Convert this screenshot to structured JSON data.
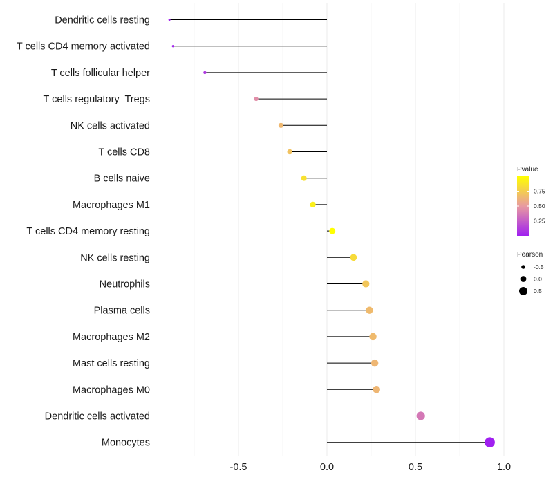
{
  "chart_data": {
    "type": "lollipop",
    "title": "",
    "xlabel": "",
    "ylabel": "",
    "xlim": [
      -1.0,
      1.0
    ],
    "x_ticks": [
      -0.5,
      0.0,
      0.5,
      1.0
    ],
    "x_tick_labels": [
      "-0.5",
      "0.0",
      "0.5",
      "1.0"
    ],
    "grid": true,
    "categories": [
      "Dendritic cells resting",
      "T cells CD4 memory activated",
      "T cells follicular helper",
      "T cells regulatory  Tregs",
      "NK cells activated",
      "T cells CD8",
      "B cells naive",
      "Macrophages M1",
      "T cells CD4 memory resting",
      "NK cells resting",
      "Neutrophils",
      "Plasma cells",
      "Macrophages M2",
      "Mast cells resting",
      "Macrophages M0",
      "Dendritic cells activated",
      "Monocytes"
    ],
    "pearson": [
      -0.89,
      -0.87,
      -0.69,
      -0.4,
      -0.26,
      -0.21,
      -0.13,
      -0.08,
      0.03,
      0.15,
      0.22,
      0.24,
      0.26,
      0.27,
      0.28,
      0.53,
      0.92
    ],
    "pvalue": [
      0.01,
      0.02,
      0.1,
      0.45,
      0.65,
      0.7,
      0.85,
      0.92,
      1.0,
      0.82,
      0.72,
      0.66,
      0.66,
      0.64,
      0.64,
      0.36,
      0.0
    ],
    "legend": {
      "color_title": "Pvalue",
      "color_ticks": [
        0.25,
        0.5,
        0.75
      ],
      "color_tick_labels": [
        "0.25",
        "0.50",
        "0.75"
      ],
      "color_low": "#a020f0",
      "color_mid": "#e89aa0",
      "color_high": "#ffff00",
      "size_title": "Pearson",
      "size_values": [
        -0.5,
        0.0,
        0.5
      ],
      "size_labels": [
        "-0.5",
        "0.0",
        "0.5"
      ],
      "placement": "right"
    }
  }
}
